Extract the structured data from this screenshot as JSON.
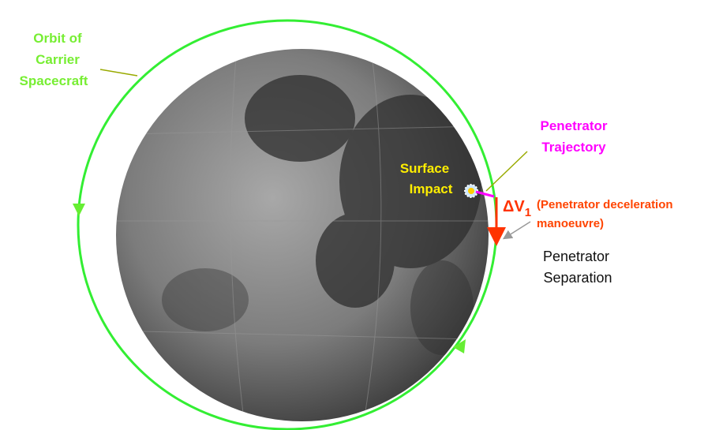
{
  "labels": {
    "orbit": [
      "Orbit of",
      "Carrier",
      "Spacecraft"
    ],
    "trajectory": [
      "Penetrator",
      "Trajectory"
    ],
    "impact": [
      "Surface",
      "Impact"
    ],
    "delta_v": {
      "symbol": "ΔV",
      "subscript": "1"
    },
    "manoeuvre": [
      "(Penetrator deceleration",
      "manoeuvre)"
    ],
    "separation": [
      "Penetrator",
      "Separation"
    ]
  }
}
